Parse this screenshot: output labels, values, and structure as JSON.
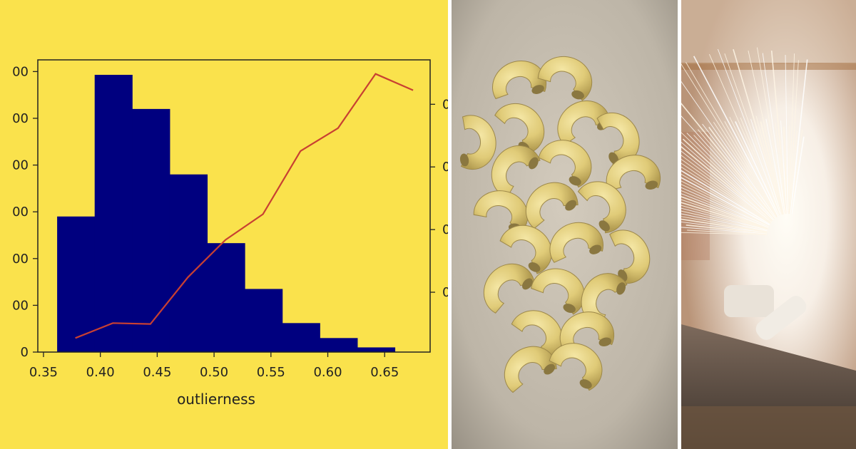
{
  "panels": {
    "chart_panel": "histogram with line overlay",
    "photo_middle": "pile of elbow macaroni on a stone surface",
    "photo_right": "sparks flying from metal grinding"
  },
  "colors": {
    "background": "#fae24c",
    "bars": "#00007f",
    "line": "#c84032",
    "axes": "#222222"
  },
  "chart_data": {
    "type": "bar",
    "xlabel": "outlierness",
    "ylabel": "",
    "title": "",
    "x_ticks": [
      "0.35",
      "0.40",
      "0.45",
      "0.50",
      "0.55",
      "0.60",
      "0.65"
    ],
    "y_ticks": [
      "0",
      "00",
      "00",
      "00",
      "00",
      "00",
      "00"
    ],
    "y2_ticks": [
      "0",
      "0",
      "0",
      "0"
    ],
    "xlim": [
      0.345,
      0.69
    ],
    "ylim": [
      0,
      6.25
    ],
    "bins": [
      {
        "from": 0.362,
        "to": 0.395,
        "value": 2.9
      },
      {
        "from": 0.395,
        "to": 0.428,
        "value": 5.93
      },
      {
        "from": 0.428,
        "to": 0.461,
        "value": 5.2
      },
      {
        "from": 0.461,
        "to": 0.494,
        "value": 3.8
      },
      {
        "from": 0.494,
        "to": 0.527,
        "value": 2.33
      },
      {
        "from": 0.527,
        "to": 0.56,
        "value": 1.35
      },
      {
        "from": 0.56,
        "to": 0.593,
        "value": 0.62
      },
      {
        "from": 0.593,
        "to": 0.626,
        "value": 0.3
      },
      {
        "from": 0.626,
        "to": 0.659,
        "value": 0.1
      },
      {
        "from": 0.659,
        "to": 0.692,
        "value": 0
      }
    ],
    "series": [
      {
        "type": "line",
        "x": [
          0.378,
          0.411,
          0.444,
          0.477,
          0.51,
          0.543,
          0.576,
          0.609,
          0.642,
          0.675
        ],
        "values": [
          0.3,
          0.62,
          0.6,
          1.6,
          2.4,
          2.95,
          4.3,
          4.79,
          5.95,
          5.6
        ]
      }
    ],
    "grid": false
  }
}
